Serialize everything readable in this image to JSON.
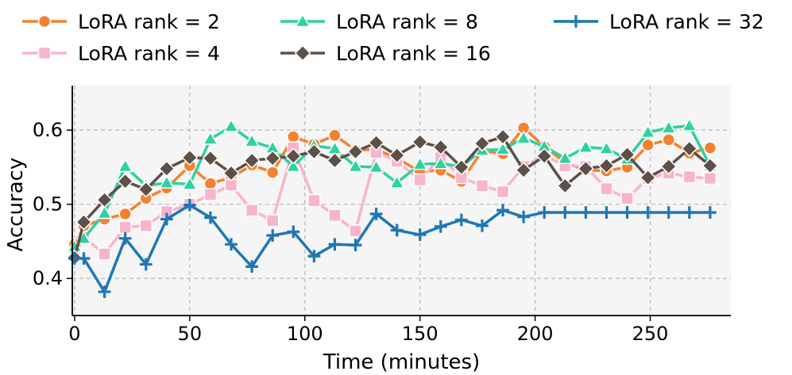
{
  "chart_data": {
    "type": "line",
    "title": "",
    "xlabel": "Time (minutes)",
    "ylabel": "Accuracy",
    "xlim": [
      -1,
      285
    ],
    "ylim": [
      0.35,
      0.66
    ],
    "xticks": [
      0,
      50,
      100,
      150,
      200,
      250
    ],
    "yticks": [
      0.4,
      0.5,
      0.6
    ],
    "xtick_labels": [
      "0",
      "50",
      "100",
      "150",
      "200",
      "250"
    ],
    "ytick_labels": [
      "0.4",
      "0.5",
      "0.6"
    ],
    "grid": true,
    "legend_position": "top",
    "series": [
      {
        "name": "LoRA rank = 2",
        "color": "#f28230",
        "marker": "circle",
        "x": [
          0,
          4,
          13,
          22,
          31,
          40,
          50,
          59,
          68,
          77,
          86,
          95,
          104,
          113,
          122,
          131,
          140,
          150,
          159,
          168,
          177,
          186,
          195,
          204,
          213,
          222,
          231,
          240,
          249,
          258,
          267,
          276
        ],
        "y": [
          0.446,
          0.471,
          0.48,
          0.487,
          0.508,
          0.522,
          0.552,
          0.528,
          0.536,
          0.553,
          0.543,
          0.591,
          0.581,
          0.593,
          0.573,
          0.574,
          0.562,
          0.544,
          0.546,
          0.531,
          0.572,
          0.568,
          0.603,
          0.578,
          0.556,
          0.546,
          0.545,
          0.55,
          0.58,
          0.587,
          0.569,
          0.576
        ]
      },
      {
        "name": "LoRA rank = 4",
        "color": "#f9b4cd",
        "marker": "square",
        "x": [
          0,
          4,
          13,
          22,
          31,
          40,
          50,
          59,
          68,
          77,
          86,
          95,
          104,
          113,
          122,
          131,
          140,
          150,
          159,
          168,
          177,
          186,
          195,
          204,
          213,
          222,
          231,
          240,
          249,
          258,
          267,
          276
        ],
        "y": [
          0.432,
          0.455,
          0.433,
          0.469,
          0.471,
          0.49,
          0.5,
          0.513,
          0.526,
          0.492,
          0.478,
          0.576,
          0.505,
          0.485,
          0.464,
          0.57,
          0.558,
          0.533,
          0.563,
          0.536,
          0.525,
          0.517,
          0.551,
          0.566,
          0.552,
          0.551,
          0.521,
          0.508,
          0.535,
          0.542,
          0.537,
          0.535
        ]
      },
      {
        "name": "LoRA rank = 8",
        "color": "#2fd1a0",
        "marker": "triangle",
        "x": [
          0,
          4,
          13,
          22,
          31,
          40,
          50,
          59,
          68,
          77,
          86,
          95,
          104,
          113,
          122,
          131,
          140,
          150,
          159,
          168,
          177,
          186,
          195,
          204,
          213,
          222,
          231,
          240,
          249,
          258,
          267,
          276
        ],
        "y": [
          0.443,
          0.454,
          0.488,
          0.551,
          0.525,
          0.529,
          0.527,
          0.588,
          0.605,
          0.585,
          0.576,
          0.551,
          0.579,
          0.575,
          0.551,
          0.55,
          0.529,
          0.554,
          0.555,
          0.551,
          0.573,
          0.574,
          0.589,
          0.578,
          0.562,
          0.577,
          0.575,
          0.561,
          0.597,
          0.603,
          0.606,
          0.552
        ]
      },
      {
        "name": "LoRA rank = 16",
        "color": "#5c5047",
        "marker": "diamond",
        "x": [
          0,
          4,
          13,
          22,
          31,
          40,
          50,
          59,
          68,
          77,
          86,
          95,
          104,
          113,
          122,
          131,
          140,
          150,
          159,
          168,
          177,
          186,
          195,
          204,
          213,
          222,
          231,
          240,
          249,
          258,
          267,
          276
        ],
        "y": [
          0.428,
          0.476,
          0.506,
          0.531,
          0.52,
          0.548,
          0.563,
          0.562,
          0.542,
          0.559,
          0.562,
          0.565,
          0.571,
          0.559,
          0.571,
          0.583,
          0.566,
          0.584,
          0.577,
          0.55,
          0.582,
          0.591,
          0.546,
          0.565,
          0.525,
          0.548,
          0.552,
          0.567,
          0.536,
          0.551,
          0.575,
          0.552
        ]
      },
      {
        "name": "LoRA rank = 32",
        "color": "#1f77b4",
        "marker": "plus",
        "x": [
          0,
          4,
          13,
          22,
          31,
          40,
          50,
          59,
          68,
          77,
          86,
          95,
          104,
          113,
          122,
          131,
          140,
          150,
          159,
          168,
          177,
          186,
          195,
          204,
          213,
          222,
          231,
          240,
          249,
          258,
          267,
          276
        ],
        "y": [
          0.427,
          0.427,
          0.382,
          0.454,
          0.419,
          0.48,
          0.499,
          0.482,
          0.446,
          0.416,
          0.458,
          0.463,
          0.43,
          0.446,
          0.445,
          0.487,
          0.465,
          0.459,
          0.47,
          0.479,
          0.471,
          0.492,
          0.483,
          0.489,
          0.489,
          0.489,
          0.489,
          0.489,
          0.489,
          0.489,
          0.489,
          0.489
        ]
      }
    ]
  }
}
